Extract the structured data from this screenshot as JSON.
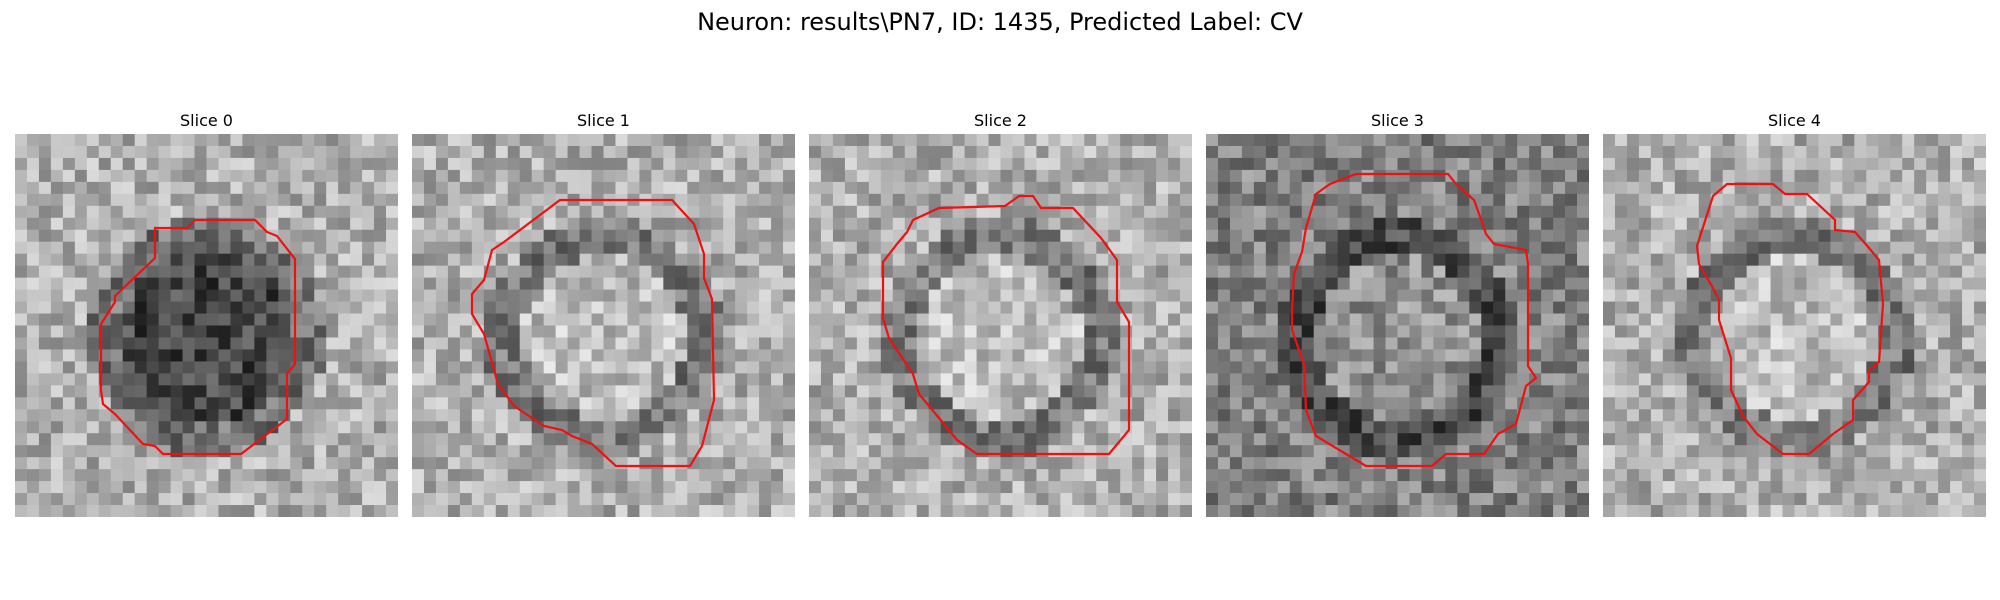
{
  "figure": {
    "title": "Neuron: results\\PN7, ID: 1435, Predicted Label: CV",
    "outline_color": "#ee1111"
  },
  "panels": [
    {
      "title": "Slice 0",
      "base": "light",
      "dark_center": true
    },
    {
      "title": "Slice 1",
      "base": "light",
      "dark_center": false
    },
    {
      "title": "Slice 2",
      "base": "light",
      "dark_center": false
    },
    {
      "title": "Slice 3",
      "base": "dark",
      "dark_center": false
    },
    {
      "title": "Slice 4",
      "base": "light",
      "dark_center": false
    }
  ]
}
